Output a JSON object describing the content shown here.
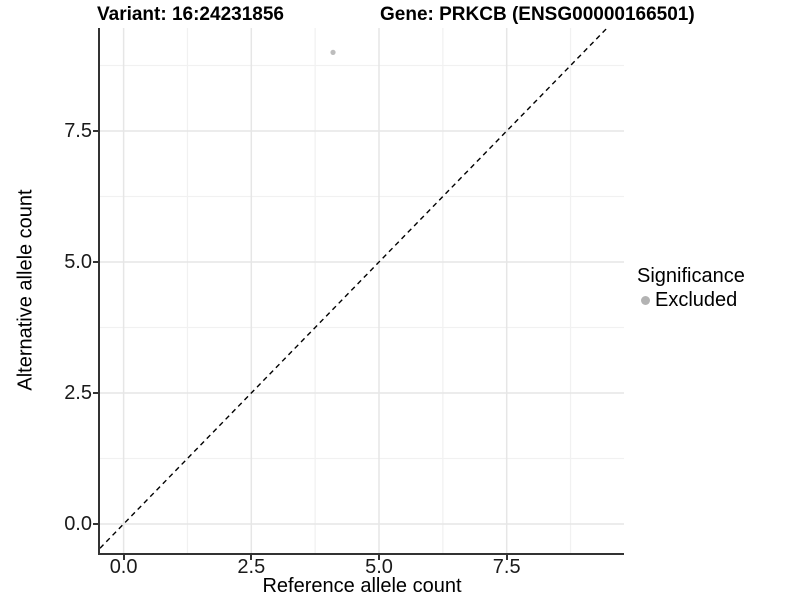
{
  "chart_data": {
    "type": "scatter",
    "title_left": "Variant: 16:24231856",
    "title_right": "Gene: PRKCB (ENSG00000166501)",
    "xlabel": "Reference allele count",
    "ylabel": "Alternative allele count",
    "x_ticks": [
      0.0,
      2.5,
      5.0,
      7.5
    ],
    "x_tick_labels": [
      "0.0",
      "2.5",
      "5.0",
      "7.5"
    ],
    "y_ticks": [
      0.0,
      2.5,
      5.0,
      7.5
    ],
    "y_tick_labels": [
      "0.0",
      "2.5",
      "5.0",
      "7.5"
    ],
    "xlim": [
      -0.46,
      9.8
    ],
    "ylim": [
      -0.55,
      9.47
    ],
    "grid": true,
    "points": [
      {
        "x": 4.1,
        "y": 9.0,
        "series": "Excluded"
      }
    ],
    "reference_line": {
      "type": "identity",
      "style": "dashed",
      "color": "#000000"
    },
    "legend": {
      "title": "Significance",
      "position": "right",
      "items": [
        {
          "label": "Excluded",
          "color": "#b3b3b3"
        }
      ]
    },
    "colors": {
      "point": "#bdbdbd",
      "grid_major": "#e6e6e6",
      "grid_minor": "#f1f1f1",
      "axis_line": "#333333",
      "text": "#000000"
    }
  }
}
